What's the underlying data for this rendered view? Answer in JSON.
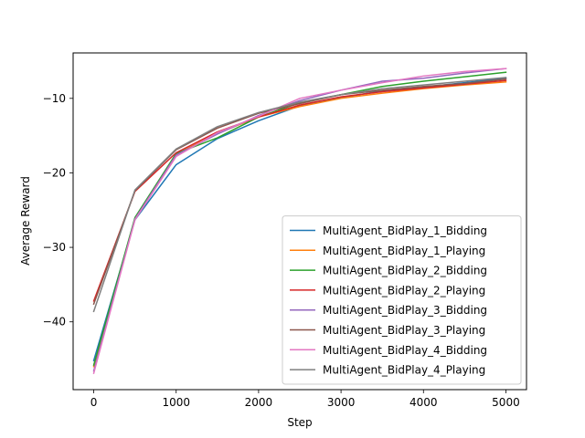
{
  "chart_data": {
    "type": "line",
    "title": "",
    "xlabel": "Step",
    "ylabel": "Average Reward",
    "xlim": [
      -250,
      5250
    ],
    "ylim": [
      -49.1,
      -3.9
    ],
    "xticks": [
      0,
      1000,
      2000,
      3000,
      4000,
      5000
    ],
    "xtick_labels": [
      "0",
      "1000",
      "2000",
      "3000",
      "4000",
      "5000"
    ],
    "yticks": [
      -40,
      -30,
      -20,
      -10
    ],
    "ytick_labels": [
      "−40",
      "−30",
      "−20",
      "−10"
    ],
    "grid": false,
    "legend_position": "lower-right",
    "x": [
      0,
      500,
      1000,
      1500,
      2000,
      2500,
      3000,
      3500,
      4000,
      4500,
      5000
    ],
    "series": [
      {
        "name": "MultiAgent_BidPlay_1_Bidding",
        "color": "#1f77b4",
        "values": [
          -45.2,
          -26.3,
          -18.9,
          -15.4,
          -13.0,
          -11.0,
          -9.9,
          -9.0,
          -8.5,
          -7.9,
          -7.3
        ]
      },
      {
        "name": "MultiAgent_BidPlay_1_Playing",
        "color": "#ff7f0e",
        "values": [
          -46.0,
          -26.2,
          -17.5,
          -14.7,
          -12.5,
          -11.1,
          -10.0,
          -9.3,
          -8.7,
          -8.2,
          -7.8
        ]
      },
      {
        "name": "MultiAgent_BidPlay_2_Bidding",
        "color": "#2ca02c",
        "values": [
          -45.8,
          -26.0,
          -17.4,
          -15.3,
          -12.5,
          -10.6,
          -9.5,
          -8.4,
          -7.7,
          -7.1,
          -6.5
        ]
      },
      {
        "name": "MultiAgent_BidPlay_2_Playing",
        "color": "#d62728",
        "values": [
          -37.2,
          -22.5,
          -17.3,
          -14.5,
          -12.5,
          -10.9,
          -9.8,
          -9.1,
          -8.6,
          -8.1,
          -7.6
        ]
      },
      {
        "name": "MultiAgent_BidPlay_3_Bidding",
        "color": "#9467bd",
        "values": [
          -46.6,
          -26.2,
          -17.6,
          -14.8,
          -12.3,
          -10.3,
          -8.9,
          -7.7,
          -7.3,
          -6.6,
          -6.0
        ]
      },
      {
        "name": "MultiAgent_BidPlay_3_Playing",
        "color": "#8c564b",
        "values": [
          -37.6,
          -22.4,
          -16.9,
          -14.0,
          -12.0,
          -10.7,
          -9.5,
          -8.9,
          -8.4,
          -8.0,
          -7.4
        ]
      },
      {
        "name": "MultiAgent_BidPlay_4_Bidding",
        "color": "#e377c2",
        "values": [
          -46.9,
          -26.3,
          -17.8,
          -14.6,
          -12.4,
          -10.0,
          -8.9,
          -7.9,
          -7.0,
          -6.4,
          -6.0
        ]
      },
      {
        "name": "MultiAgent_BidPlay_4_Playing",
        "color": "#7f7f7f",
        "values": [
          -38.6,
          -22.3,
          -16.8,
          -13.8,
          -11.9,
          -10.5,
          -9.5,
          -8.7,
          -8.2,
          -7.7,
          -7.2
        ]
      }
    ]
  }
}
